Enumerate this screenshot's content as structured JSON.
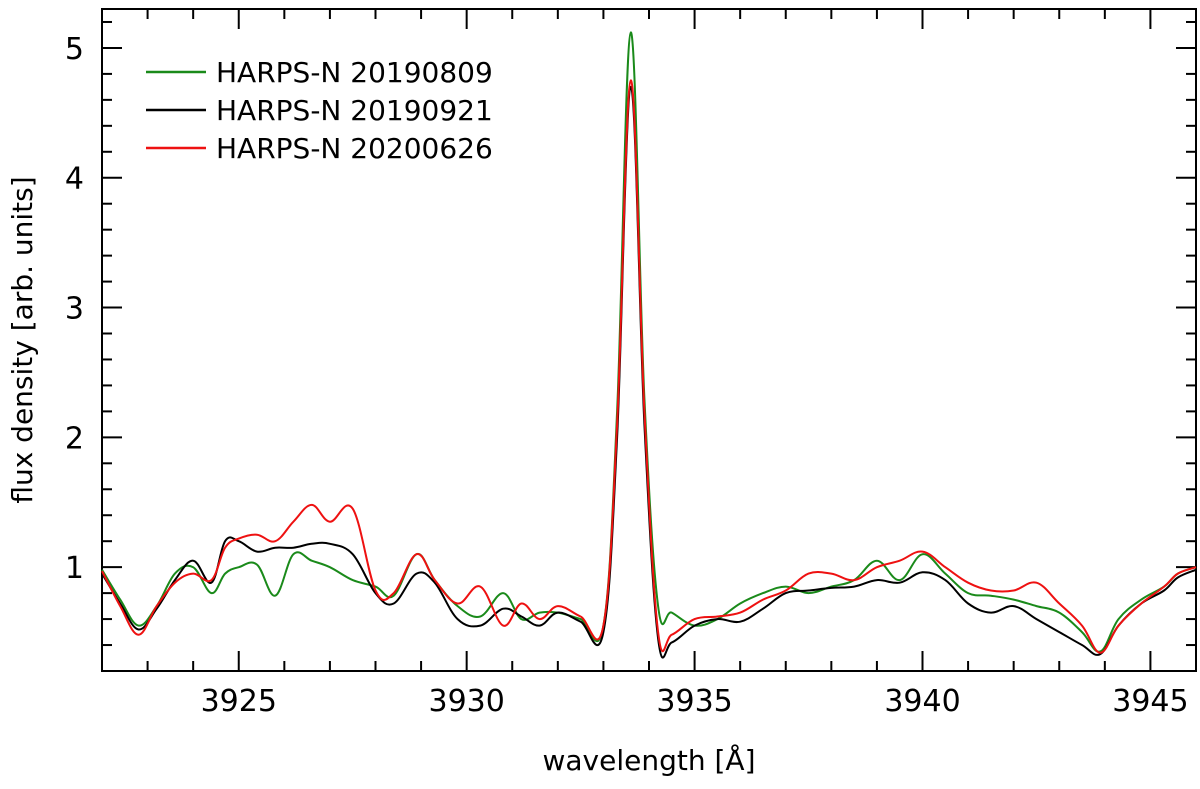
{
  "chart_data": {
    "type": "line",
    "title": "",
    "xlabel": "wavelength [Å]",
    "ylabel": "flux density [arb. units]",
    "xlim": [
      3922,
      3946
    ],
    "ylim": [
      0.2,
      5.3
    ],
    "xticks": [
      3925,
      3930,
      3935,
      3940,
      3945
    ],
    "yticks": [
      1,
      2,
      3,
      4,
      5
    ],
    "grid": false,
    "legend_position": "top-left",
    "series": [
      {
        "name": "HARPS-N 20190809",
        "color": "#1a8a1a",
        "x": [
          3922.0,
          3922.4,
          3922.8,
          3923.2,
          3923.6,
          3924.0,
          3924.4,
          3924.7,
          3925.0,
          3925.4,
          3925.8,
          3926.2,
          3926.6,
          3927.0,
          3927.5,
          3928.0,
          3928.4,
          3928.9,
          3929.3,
          3929.8,
          3930.3,
          3930.8,
          3931.2,
          3931.6,
          3932.0,
          3932.5,
          3933.0,
          3933.3,
          3933.6,
          3933.9,
          3934.2,
          3934.5,
          3935.0,
          3935.5,
          3936.0,
          3936.5,
          3937.0,
          3937.5,
          3938.0,
          3938.5,
          3939.0,
          3939.5,
          3940.0,
          3940.5,
          3941.0,
          3941.5,
          3942.0,
          3942.5,
          3943.0,
          3943.5,
          3943.9,
          3944.3,
          3944.8,
          3945.3,
          3945.6,
          3946.0
        ],
        "y": [
          0.98,
          0.75,
          0.55,
          0.7,
          0.95,
          1.0,
          0.8,
          0.95,
          1.0,
          1.02,
          0.78,
          1.1,
          1.05,
          1.0,
          0.9,
          0.85,
          0.78,
          1.1,
          0.9,
          0.7,
          0.62,
          0.8,
          0.6,
          0.65,
          0.65,
          0.6,
          0.55,
          2.2,
          5.12,
          2.3,
          0.7,
          0.65,
          0.55,
          0.6,
          0.72,
          0.8,
          0.85,
          0.8,
          0.85,
          0.9,
          1.05,
          0.9,
          1.1,
          0.95,
          0.8,
          0.78,
          0.75,
          0.7,
          0.65,
          0.5,
          0.35,
          0.6,
          0.75,
          0.85,
          0.95,
          1.0
        ]
      },
      {
        "name": "HARPS-N 20190921",
        "color": "#000000",
        "x": [
          3922.0,
          3922.4,
          3922.8,
          3923.2,
          3923.6,
          3924.0,
          3924.4,
          3924.7,
          3925.0,
          3925.4,
          3925.8,
          3926.2,
          3926.6,
          3927.0,
          3927.5,
          3928.0,
          3928.4,
          3928.9,
          3929.3,
          3929.8,
          3930.3,
          3930.8,
          3931.2,
          3931.6,
          3932.0,
          3932.5,
          3933.0,
          3933.3,
          3933.6,
          3933.9,
          3934.2,
          3934.5,
          3935.0,
          3935.5,
          3936.0,
          3936.5,
          3937.0,
          3937.5,
          3938.0,
          3938.5,
          3939.0,
          3939.5,
          3940.0,
          3940.5,
          3941.0,
          3941.5,
          3942.0,
          3942.5,
          3943.0,
          3943.5,
          3943.9,
          3944.3,
          3944.8,
          3945.3,
          3945.6,
          3946.0
        ],
        "y": [
          0.95,
          0.72,
          0.52,
          0.68,
          0.9,
          1.05,
          0.88,
          1.2,
          1.2,
          1.12,
          1.15,
          1.15,
          1.18,
          1.18,
          1.1,
          0.8,
          0.72,
          0.95,
          0.88,
          0.6,
          0.55,
          0.68,
          0.62,
          0.55,
          0.65,
          0.58,
          0.5,
          2.0,
          4.7,
          2.1,
          0.45,
          0.42,
          0.55,
          0.6,
          0.58,
          0.68,
          0.8,
          0.82,
          0.84,
          0.85,
          0.9,
          0.88,
          0.96,
          0.9,
          0.72,
          0.65,
          0.7,
          0.6,
          0.5,
          0.4,
          0.33,
          0.55,
          0.72,
          0.82,
          0.92,
          0.98
        ]
      },
      {
        "name": "HARPS-N 20200626",
        "color": "#ee1111",
        "x": [
          3922.0,
          3922.4,
          3922.8,
          3923.2,
          3923.6,
          3924.0,
          3924.4,
          3924.7,
          3925.0,
          3925.4,
          3925.8,
          3926.2,
          3926.6,
          3927.0,
          3927.5,
          3928.0,
          3928.4,
          3928.9,
          3929.3,
          3929.8,
          3930.3,
          3930.8,
          3931.2,
          3931.6,
          3932.0,
          3932.5,
          3933.0,
          3933.3,
          3933.6,
          3933.9,
          3934.2,
          3934.5,
          3935.0,
          3935.5,
          3936.0,
          3936.5,
          3937.0,
          3937.5,
          3938.0,
          3938.5,
          3939.0,
          3939.5,
          3940.0,
          3940.5,
          3941.0,
          3941.5,
          3942.0,
          3942.5,
          3943.0,
          3943.5,
          3943.9,
          3944.3,
          3944.8,
          3945.3,
          3945.6,
          3946.0
        ],
        "y": [
          0.97,
          0.7,
          0.48,
          0.7,
          0.88,
          0.95,
          0.9,
          1.15,
          1.22,
          1.25,
          1.2,
          1.35,
          1.48,
          1.35,
          1.45,
          0.82,
          0.8,
          1.1,
          0.9,
          0.72,
          0.85,
          0.55,
          0.72,
          0.6,
          0.7,
          0.62,
          0.55,
          2.1,
          4.75,
          2.2,
          0.5,
          0.48,
          0.6,
          0.62,
          0.65,
          0.75,
          0.82,
          0.95,
          0.95,
          0.9,
          1.0,
          1.05,
          1.12,
          1.0,
          0.88,
          0.82,
          0.82,
          0.88,
          0.72,
          0.55,
          0.34,
          0.55,
          0.72,
          0.85,
          0.95,
          1.0
        ]
      }
    ]
  }
}
